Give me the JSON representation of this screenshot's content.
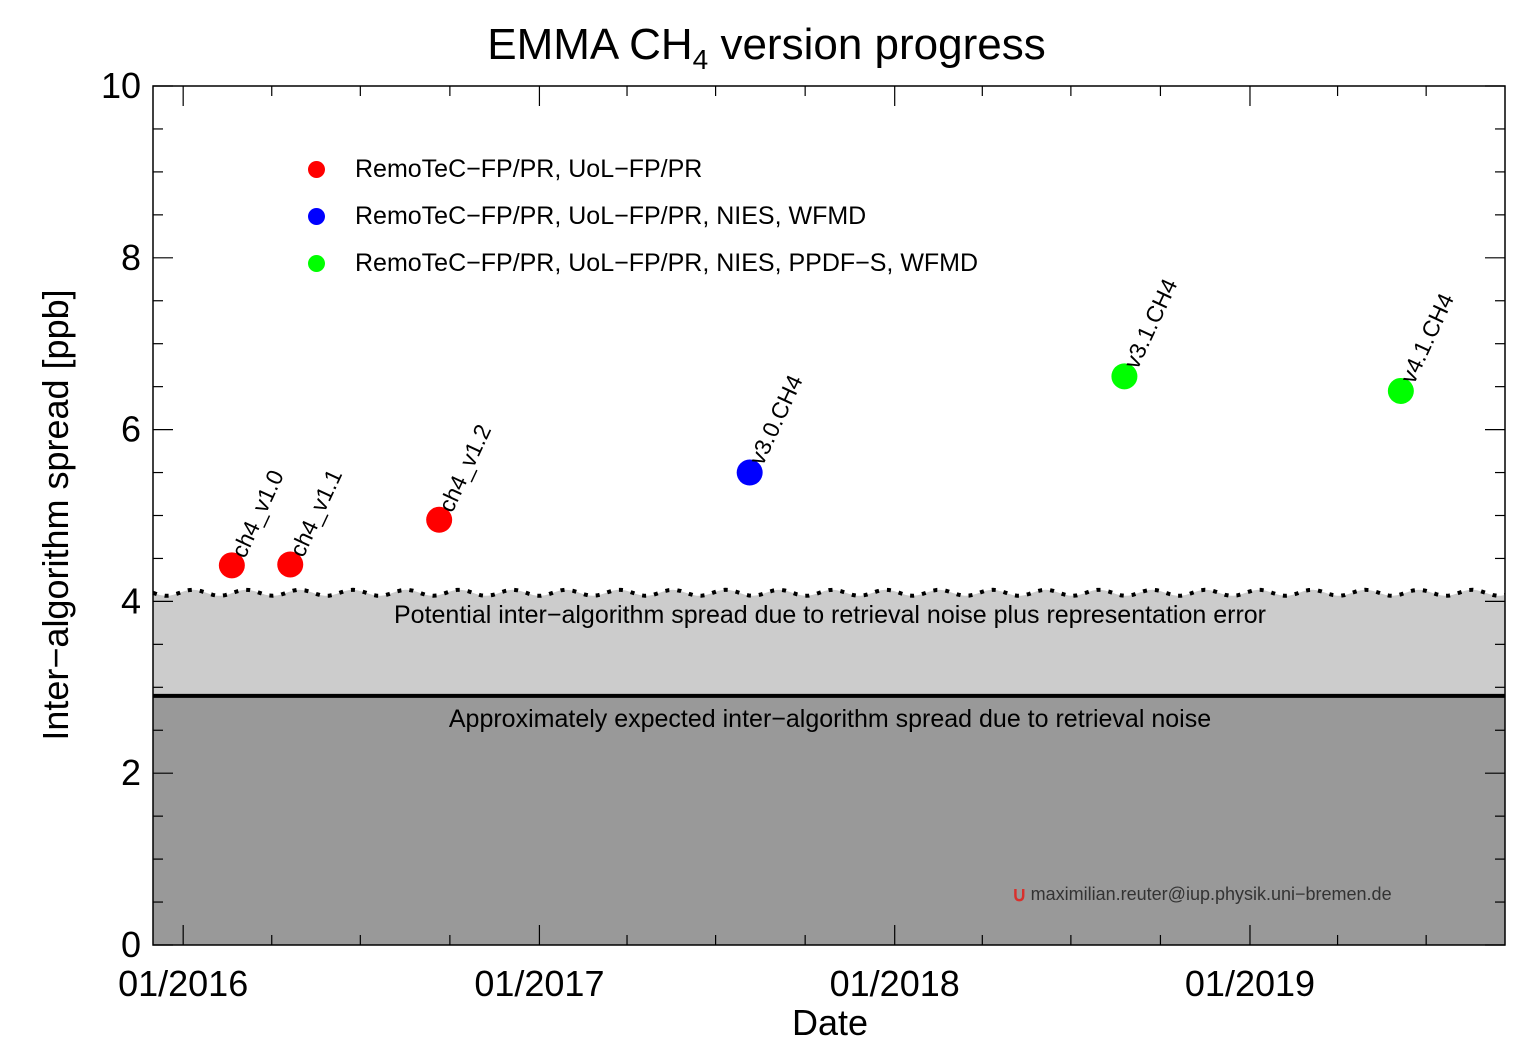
{
  "title": {
    "main": "EMMA CH",
    "sub": "4",
    "rest": " version progress"
  },
  "chart_data": {
    "type": "scatter",
    "xlabel": "Date",
    "ylabel": "Inter−algorithm spread [ppb]",
    "ylim": [
      0,
      10
    ],
    "xlim": [
      "2015-12-01",
      "2019-09-20"
    ],
    "x_ticks": [
      {
        "label": "01/2016",
        "date": "2016-01-01"
      },
      {
        "label": "01/2017",
        "date": "2017-01-01"
      },
      {
        "label": "01/2018",
        "date": "2018-01-01"
      },
      {
        "label": "01/2019",
        "date": "2019-01-01"
      }
    ],
    "y_ticks": [
      "0",
      "2",
      "4",
      "6",
      "8",
      "10"
    ],
    "points": [
      {
        "label": "ch4_v1.0",
        "date": "2016-02-20",
        "y": 4.42,
        "group": 0
      },
      {
        "label": "ch4_v1.1",
        "date": "2016-04-20",
        "y": 4.43,
        "group": 0
      },
      {
        "label": "ch4_v1.2",
        "date": "2016-09-20",
        "y": 4.95,
        "group": 0
      },
      {
        "label": "v3.0.CH4",
        "date": "2017-08-05",
        "y": 5.5,
        "group": 1
      },
      {
        "label": "v3.1.CH4",
        "date": "2018-08-25",
        "y": 6.62,
        "group": 2
      },
      {
        "label": "v4.1.CH4",
        "date": "2019-06-05",
        "y": 6.45,
        "group": 2
      }
    ],
    "legend": [
      {
        "text": "RemoTeC−FP/PR, UoL−FP/PR",
        "color": "#ff0000"
      },
      {
        "text": "RemoTeC−FP/PR, UoL−FP/PR, NIES, WFMD",
        "color": "#0000ff"
      },
      {
        "text": "RemoTeC−FP/PR, UoL−FP/PR, NIES, PPDF−S, WFMD",
        "color": "#00ff00"
      }
    ],
    "bands": [
      {
        "y_top": 4.1,
        "color": "#cccccc",
        "text": "Potential inter−algorithm spread due to retrieval noise plus representation error"
      },
      {
        "y_top": 2.9,
        "color": "#999999",
        "text": "Approximately expected inter−algorithm spread due to retrieval noise"
      }
    ],
    "legend_position": "top-left",
    "grid": false
  },
  "credit": {
    "logo": "∪",
    "text": "maximilian.reuter@iup.physik.uni−bremen.de"
  }
}
